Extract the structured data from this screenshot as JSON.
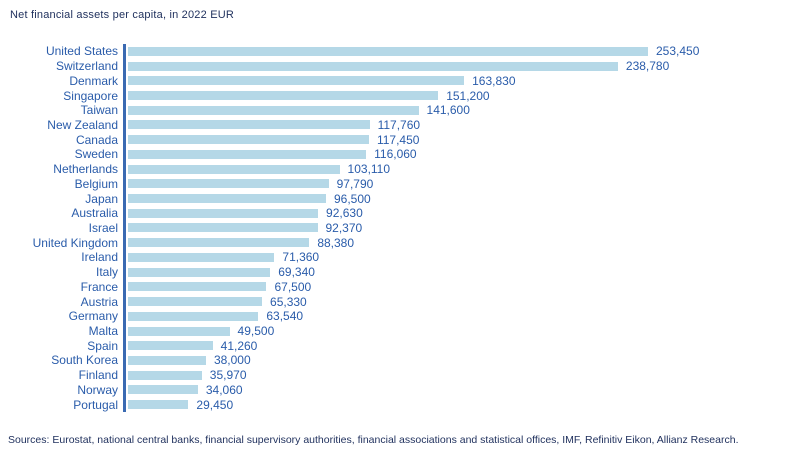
{
  "header": {
    "title": "Net financial assets per capita, in 2022 EUR"
  },
  "chart_data": {
    "type": "bar",
    "orientation": "horizontal",
    "title": "Net financial assets per capita, in 2022 EUR",
    "unit": "EUR",
    "xlabel": "",
    "ylabel": "",
    "grid": false,
    "legend": "none",
    "value_labels_visible": true,
    "xlim": [
      0,
      260000
    ],
    "categories": [
      "United States",
      "Switzerland",
      "Denmark",
      "Singapore",
      "Taiwan",
      "New Zealand",
      "Canada",
      "Sweden",
      "Netherlands",
      "Belgium",
      "Japan",
      "Australia",
      "Israel",
      "United Kingdom",
      "Ireland",
      "Italy",
      "France",
      "Austria",
      "Germany",
      "Malta",
      "Spain",
      "South Korea",
      "Finland",
      "Norway",
      "Portugal"
    ],
    "values": [
      253450,
      238780,
      163830,
      151200,
      141600,
      117760,
      117450,
      116060,
      103110,
      97790,
      96500,
      92630,
      92370,
      88380,
      71360,
      69340,
      67500,
      65330,
      63540,
      49500,
      41260,
      38000,
      35970,
      34060,
      29450
    ]
  },
  "footer": {
    "sources": "Sources: Eurostat, national central banks, financial supervisory authorities, financial associations and statistical offices, IMF, Refinitiv Eikon, Allianz Research."
  },
  "colors": {
    "bar": "#B5D8E7",
    "label_text": "#2A5CAA",
    "axis_line": "#3A6AB2",
    "title_text": "#1E2F5C",
    "sources_text": "#1E2F5C"
  }
}
